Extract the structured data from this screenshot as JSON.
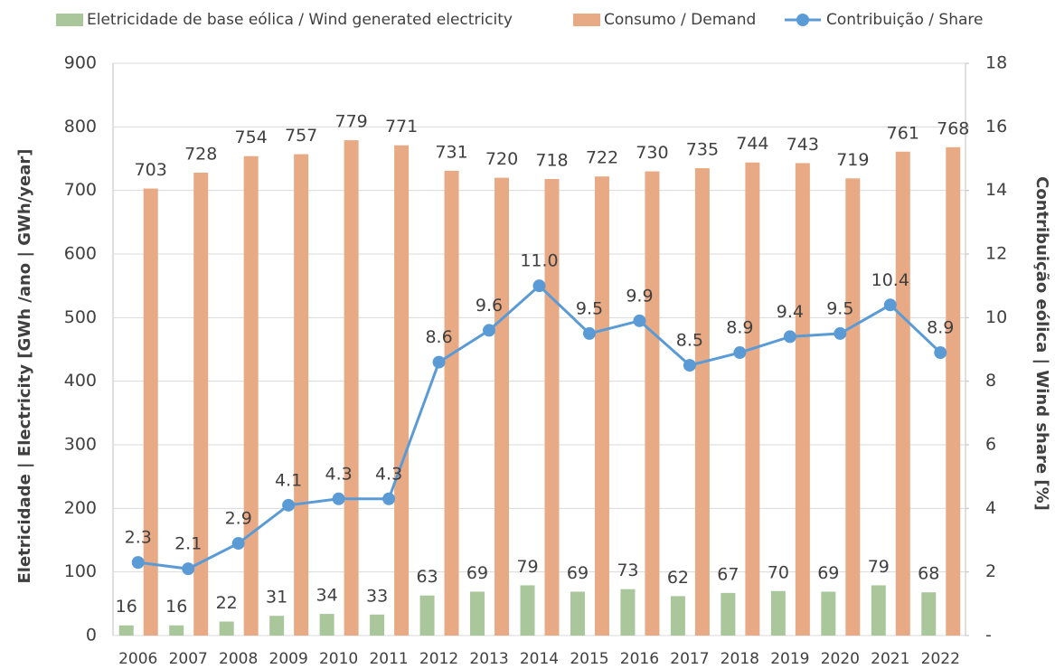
{
  "chart_data": {
    "type": "bar_line",
    "categories": [
      "2006",
      "2007",
      "2008",
      "2009",
      "2010",
      "2011",
      "2012",
      "2013",
      "2014",
      "2015",
      "2016",
      "2017",
      "2018",
      "2019",
      "2020",
      "2021",
      "2022"
    ],
    "series": [
      {
        "name": "Eletricidade de base eólica / Wind generated electricity",
        "color": "#a9c79a",
        "type": "bar",
        "values": [
          16,
          16,
          22,
          31,
          34,
          33,
          63,
          69,
          79,
          69,
          73,
          62,
          67,
          70,
          69,
          79,
          68
        ]
      },
      {
        "name": "Consumo / Demand",
        "color": "#e8aa84",
        "type": "bar",
        "values": [
          703,
          728,
          754,
          757,
          779,
          771,
          731,
          720,
          718,
          722,
          730,
          735,
          744,
          743,
          719,
          761,
          768
        ]
      },
      {
        "name": "Contribuição / Share",
        "color": "#5b9bd5",
        "type": "line",
        "axis": "y2",
        "values": [
          2.3,
          2.1,
          2.9,
          4.1,
          4.3,
          4.3,
          8.6,
          9.6,
          11.0,
          9.5,
          9.9,
          8.5,
          8.9,
          9.4,
          9.5,
          10.4,
          8.9
        ],
        "value_labels": [
          "2.3",
          "2.1",
          "2.9",
          "4.1",
          "4.3",
          "4.3",
          "8.6",
          "9.6",
          "11.0",
          "9.5",
          "9.9",
          "8.5",
          "8.9",
          "9.4",
          "9.5",
          "10.4",
          "8.9"
        ]
      }
    ],
    "ylabel": "Eletricidade | Electricity [GWh /ano | GWh/year]",
    "y2label": "Contribuição eólica | Wind share [%]",
    "ylim": [
      0,
      900
    ],
    "yticks": [
      0,
      100,
      200,
      300,
      400,
      500,
      600,
      700,
      800,
      900
    ],
    "y2lim": [
      0,
      18
    ],
    "y2ticks": [
      {
        "value": 0,
        "label": "-"
      },
      2,
      4,
      6,
      8,
      10,
      12,
      14,
      16,
      18
    ],
    "grid": true,
    "legend": "top"
  }
}
